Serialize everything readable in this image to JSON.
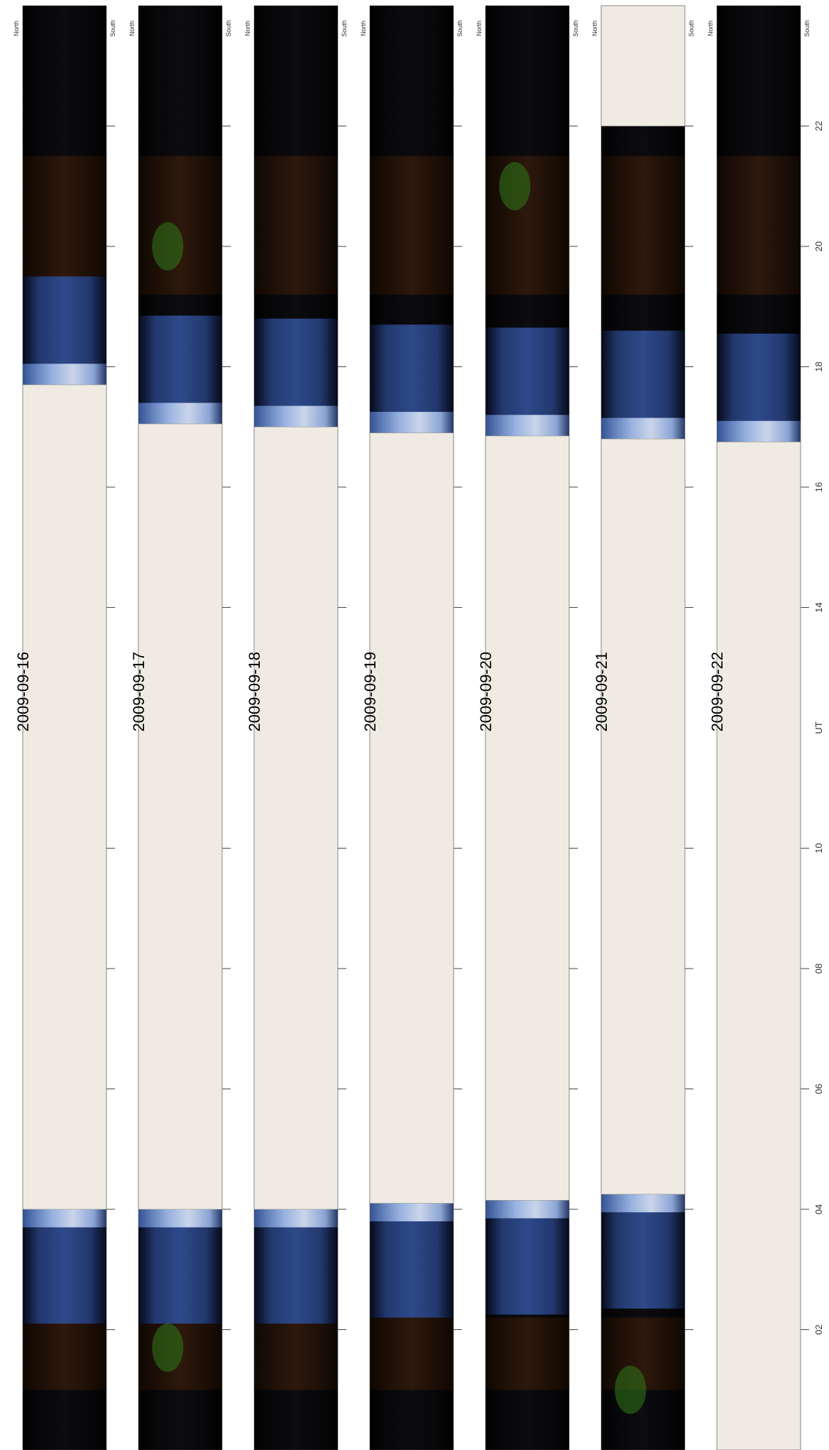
{
  "chart_data": {
    "type": "heatmap",
    "xlabel": "UT",
    "x_ticks": [
      "02",
      "04",
      "06",
      "08",
      "10",
      "14",
      "16",
      "18",
      "20",
      "22"
    ],
    "x_tick_hours": [
      2,
      4,
      6,
      8,
      10,
      14,
      16,
      18,
      20,
      22
    ],
    "x_axis_label_hour": 12,
    "xlim_hours": [
      0,
      24
    ],
    "hemisphere_labels": {
      "north": "North",
      "south": "South"
    },
    "daylight_color": "#efebe2",
    "days": [
      {
        "date": "2009-09-16",
        "dark_end_ut": 4.0,
        "dark_start_ut": 17.7,
        "green_aurora": []
      },
      {
        "date": "2009-09-17",
        "dark_end_ut": 4.0,
        "dark_start_ut": 17.05,
        "green_aurora": [
          1.7,
          20.0
        ]
      },
      {
        "date": "2009-09-18",
        "dark_end_ut": 4.0,
        "dark_start_ut": 17.0,
        "green_aurora": []
      },
      {
        "date": "2009-09-19",
        "dark_end_ut": 4.1,
        "dark_start_ut": 16.9,
        "green_aurora": []
      },
      {
        "date": "2009-09-20",
        "dark_end_ut": 4.15,
        "dark_start_ut": 16.85,
        "green_aurora": [
          21.0
        ]
      },
      {
        "date": "2009-09-21",
        "dark_end_ut": 4.25,
        "dark_start_ut": 16.8,
        "daylight_after_ut": 22.0,
        "green_aurora": [
          1.0
        ]
      },
      {
        "date": "2009-09-22",
        "dark_end_ut": 0.0,
        "dark_start_ut": 16.75,
        "green_aurora": []
      }
    ]
  }
}
